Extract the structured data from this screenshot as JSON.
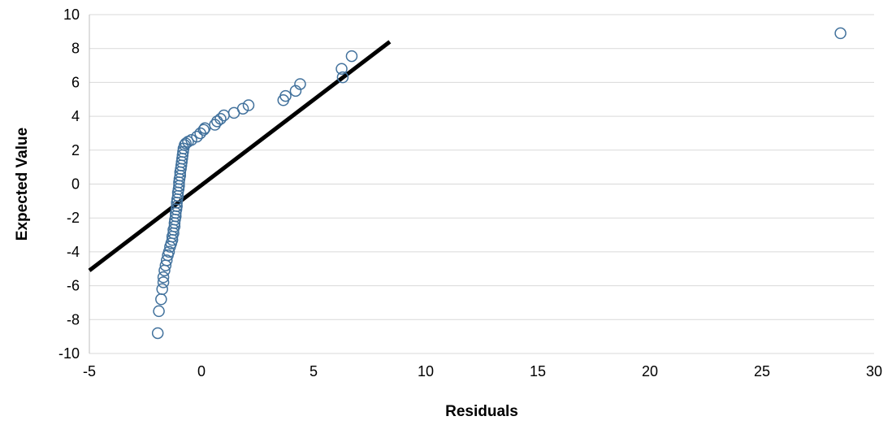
{
  "chart_data": {
    "type": "scatter",
    "title": "",
    "xlabel": "Residuals",
    "ylabel": "Expected Value",
    "xlim": [
      -5,
      30
    ],
    "ylim": [
      -10,
      10
    ],
    "xticks": [
      -5,
      0,
      5,
      10,
      15,
      20,
      25,
      30
    ],
    "yticks": [
      -10,
      -8,
      -6,
      -4,
      -2,
      0,
      2,
      4,
      6,
      8,
      10
    ],
    "xtick_labels": [
      "-5",
      "0",
      "5",
      "10",
      "15",
      "20",
      "25",
      "30"
    ],
    "ytick_labels": [
      "-10",
      "-8",
      "-6",
      "-4",
      "-2",
      "0",
      "2",
      "4",
      "6",
      "8",
      "10"
    ],
    "grid": "horizontal",
    "legend": "none",
    "colors": {
      "points": "#41719c",
      "line": "#000000",
      "grid": "#d9d9d9"
    },
    "reference_line": {
      "x": [
        -5,
        8.4
      ],
      "y": [
        -5.1,
        8.4
      ]
    },
    "series": [
      {
        "marker": "open-circle",
        "points": [
          [
            -1.95,
            -8.8
          ],
          [
            -1.9,
            -7.5
          ],
          [
            -1.8,
            -6.8
          ],
          [
            -1.75,
            -6.2
          ],
          [
            -1.7,
            -5.8
          ],
          [
            -1.7,
            -5.5
          ],
          [
            -1.65,
            -5.1
          ],
          [
            -1.6,
            -4.8
          ],
          [
            -1.55,
            -4.5
          ],
          [
            -1.5,
            -4.2
          ],
          [
            -1.45,
            -4.0
          ],
          [
            -1.4,
            -3.7
          ],
          [
            -1.35,
            -3.5
          ],
          [
            -1.3,
            -3.3
          ],
          [
            -1.3,
            -3.1
          ],
          [
            -1.25,
            -2.9
          ],
          [
            -1.25,
            -2.7
          ],
          [
            -1.2,
            -2.5
          ],
          [
            -1.2,
            -2.3
          ],
          [
            -1.18,
            -2.1
          ],
          [
            -1.15,
            -1.9
          ],
          [
            -1.15,
            -1.7
          ],
          [
            -1.12,
            -1.5
          ],
          [
            -1.1,
            -1.3
          ],
          [
            -1.1,
            -1.1
          ],
          [
            -1.08,
            -0.9
          ],
          [
            -1.05,
            -0.7
          ],
          [
            -1.05,
            -0.5
          ],
          [
            -1.02,
            -0.3
          ],
          [
            -1.0,
            -0.1
          ],
          [
            -1.0,
            0.1
          ],
          [
            -0.98,
            0.3
          ],
          [
            -0.95,
            0.5
          ],
          [
            -0.95,
            0.7
          ],
          [
            -0.92,
            0.9
          ],
          [
            -0.9,
            1.1
          ],
          [
            -0.88,
            1.3
          ],
          [
            -0.86,
            1.5
          ],
          [
            -0.84,
            1.7
          ],
          [
            -0.82,
            1.9
          ],
          [
            -0.8,
            2.1
          ],
          [
            -0.75,
            2.3
          ],
          [
            -0.7,
            2.4
          ],
          [
            -0.6,
            2.5
          ],
          [
            -0.45,
            2.6
          ],
          [
            -0.2,
            2.8
          ],
          [
            -0.05,
            3.0
          ],
          [
            0.1,
            3.2
          ],
          [
            0.15,
            3.3
          ],
          [
            0.6,
            3.5
          ],
          [
            0.7,
            3.7
          ],
          [
            0.85,
            3.85
          ],
          [
            1.0,
            4.05
          ],
          [
            1.45,
            4.2
          ],
          [
            1.85,
            4.45
          ],
          [
            2.1,
            4.65
          ],
          [
            3.65,
            4.95
          ],
          [
            3.75,
            5.2
          ],
          [
            4.2,
            5.5
          ],
          [
            4.4,
            5.9
          ],
          [
            6.3,
            6.3
          ],
          [
            6.25,
            6.8
          ],
          [
            6.7,
            7.55
          ],
          [
            28.5,
            8.9
          ]
        ]
      }
    ]
  }
}
